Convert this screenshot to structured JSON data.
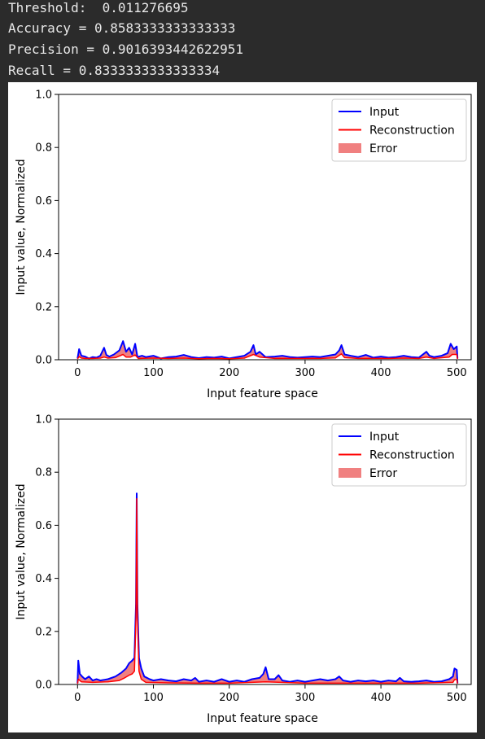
{
  "console": {
    "threshold_line": "Threshold:  0.011276695",
    "accuracy_line": "Accuracy = 0.8583333333333333",
    "precision_line": "Precision = 0.9016393442622951",
    "recall_line": "Recall = 0.8333333333333334"
  },
  "chart_data": [
    {
      "type": "line",
      "xlabel": "Input feature space",
      "ylabel": "Input value, Normalized",
      "xlim": [
        -25,
        519
      ],
      "ylim": [
        0,
        1.0
      ],
      "xticks": [
        0,
        100,
        200,
        300,
        400,
        500
      ],
      "yticks": [
        0.0,
        0.2,
        0.4,
        0.6,
        0.8,
        1.0
      ],
      "legend_position": "top-right",
      "legend": [
        "Input",
        "Reconstruction",
        "Error"
      ],
      "colors": {
        "input": "#0000ff",
        "reconstruction": "#ff0000",
        "error": "#f08080"
      },
      "input_points": [
        [
          0,
          0.005
        ],
        [
          2,
          0.04
        ],
        [
          5,
          0.015
        ],
        [
          10,
          0.012
        ],
        [
          15,
          0.005
        ],
        [
          20,
          0.01
        ],
        [
          25,
          0.008
        ],
        [
          30,
          0.015
        ],
        [
          35,
          0.045
        ],
        [
          38,
          0.018
        ],
        [
          42,
          0.012
        ],
        [
          48,
          0.02
        ],
        [
          55,
          0.035
        ],
        [
          60,
          0.07
        ],
        [
          64,
          0.03
        ],
        [
          68,
          0.045
        ],
        [
          72,
          0.02
        ],
        [
          76,
          0.06
        ],
        [
          79,
          0.01
        ],
        [
          85,
          0.015
        ],
        [
          90,
          0.01
        ],
        [
          100,
          0.015
        ],
        [
          110,
          0.005
        ],
        [
          120,
          0.01
        ],
        [
          130,
          0.012
        ],
        [
          140,
          0.018
        ],
        [
          150,
          0.01
        ],
        [
          160,
          0.006
        ],
        [
          170,
          0.01
        ],
        [
          180,
          0.008
        ],
        [
          190,
          0.012
        ],
        [
          200,
          0.005
        ],
        [
          210,
          0.01
        ],
        [
          220,
          0.015
        ],
        [
          228,
          0.03
        ],
        [
          232,
          0.055
        ],
        [
          235,
          0.02
        ],
        [
          240,
          0.03
        ],
        [
          248,
          0.01
        ],
        [
          260,
          0.012
        ],
        [
          270,
          0.015
        ],
        [
          280,
          0.01
        ],
        [
          290,
          0.008
        ],
        [
          300,
          0.01
        ],
        [
          310,
          0.012
        ],
        [
          320,
          0.01
        ],
        [
          330,
          0.015
        ],
        [
          340,
          0.02
        ],
        [
          345,
          0.035
        ],
        [
          348,
          0.055
        ],
        [
          352,
          0.02
        ],
        [
          360,
          0.015
        ],
        [
          370,
          0.01
        ],
        [
          380,
          0.018
        ],
        [
          390,
          0.008
        ],
        [
          400,
          0.012
        ],
        [
          410,
          0.008
        ],
        [
          420,
          0.01
        ],
        [
          430,
          0.015
        ],
        [
          440,
          0.01
        ],
        [
          450,
          0.008
        ],
        [
          460,
          0.03
        ],
        [
          464,
          0.015
        ],
        [
          470,
          0.01
        ],
        [
          480,
          0.015
        ],
        [
          488,
          0.025
        ],
        [
          492,
          0.06
        ],
        [
          496,
          0.04
        ],
        [
          500,
          0.05
        ],
        [
          501,
          0.005
        ]
      ],
      "reconstruction_points": [
        [
          0,
          0.003
        ],
        [
          2,
          0.012
        ],
        [
          5,
          0.006
        ],
        [
          10,
          0.005
        ],
        [
          20,
          0.005
        ],
        [
          30,
          0.006
        ],
        [
          35,
          0.01
        ],
        [
          40,
          0.006
        ],
        [
          50,
          0.008
        ],
        [
          60,
          0.02
        ],
        [
          64,
          0.01
        ],
        [
          70,
          0.01
        ],
        [
          76,
          0.018
        ],
        [
          80,
          0.005
        ],
        [
          100,
          0.006
        ],
        [
          120,
          0.005
        ],
        [
          140,
          0.006
        ],
        [
          160,
          0.004
        ],
        [
          180,
          0.005
        ],
        [
          200,
          0.004
        ],
        [
          220,
          0.006
        ],
        [
          232,
          0.02
        ],
        [
          240,
          0.01
        ],
        [
          260,
          0.005
        ],
        [
          280,
          0.005
        ],
        [
          300,
          0.005
        ],
        [
          320,
          0.005
        ],
        [
          340,
          0.007
        ],
        [
          348,
          0.022
        ],
        [
          352,
          0.008
        ],
        [
          370,
          0.005
        ],
        [
          390,
          0.005
        ],
        [
          410,
          0.005
        ],
        [
          430,
          0.006
        ],
        [
          450,
          0.005
        ],
        [
          460,
          0.01
        ],
        [
          470,
          0.005
        ],
        [
          490,
          0.01
        ],
        [
          494,
          0.02
        ],
        [
          500,
          0.02
        ],
        [
          501,
          0.003
        ]
      ]
    },
    {
      "type": "line",
      "xlabel": "Input feature space",
      "ylabel": "Input value, Normalized",
      "xlim": [
        -25,
        519
      ],
      "ylim": [
        0,
        1.0
      ],
      "xticks": [
        0,
        100,
        200,
        300,
        400,
        500
      ],
      "yticks": [
        0.0,
        0.2,
        0.4,
        0.6,
        0.8,
        1.0
      ],
      "legend_position": "top-right",
      "legend": [
        "Input",
        "Reconstruction",
        "Error"
      ],
      "colors": {
        "input": "#0000ff",
        "reconstruction": "#ff0000",
        "error": "#f08080"
      },
      "input_points": [
        [
          0,
          0.005
        ],
        [
          1,
          0.09
        ],
        [
          3,
          0.04
        ],
        [
          6,
          0.03
        ],
        [
          10,
          0.02
        ],
        [
          15,
          0.03
        ],
        [
          20,
          0.015
        ],
        [
          25,
          0.02
        ],
        [
          30,
          0.015
        ],
        [
          40,
          0.02
        ],
        [
          50,
          0.03
        ],
        [
          58,
          0.045
        ],
        [
          64,
          0.06
        ],
        [
          68,
          0.08
        ],
        [
          72,
          0.09
        ],
        [
          75,
          0.1
        ],
        [
          77,
          0.3
        ],
        [
          78,
          0.72
        ],
        [
          79,
          0.3
        ],
        [
          81,
          0.1
        ],
        [
          84,
          0.06
        ],
        [
          88,
          0.03
        ],
        [
          95,
          0.02
        ],
        [
          100,
          0.015
        ],
        [
          110,
          0.02
        ],
        [
          120,
          0.015
        ],
        [
          130,
          0.012
        ],
        [
          140,
          0.02
        ],
        [
          150,
          0.015
        ],
        [
          155,
          0.025
        ],
        [
          160,
          0.01
        ],
        [
          170,
          0.015
        ],
        [
          180,
          0.01
        ],
        [
          190,
          0.02
        ],
        [
          200,
          0.01
        ],
        [
          210,
          0.015
        ],
        [
          220,
          0.01
        ],
        [
          230,
          0.02
        ],
        [
          240,
          0.025
        ],
        [
          245,
          0.04
        ],
        [
          248,
          0.065
        ],
        [
          252,
          0.02
        ],
        [
          260,
          0.02
        ],
        [
          265,
          0.035
        ],
        [
          270,
          0.015
        ],
        [
          280,
          0.01
        ],
        [
          290,
          0.015
        ],
        [
          300,
          0.01
        ],
        [
          310,
          0.015
        ],
        [
          320,
          0.02
        ],
        [
          330,
          0.015
        ],
        [
          340,
          0.02
        ],
        [
          345,
          0.03
        ],
        [
          350,
          0.015
        ],
        [
          360,
          0.01
        ],
        [
          370,
          0.015
        ],
        [
          380,
          0.012
        ],
        [
          390,
          0.015
        ],
        [
          400,
          0.01
        ],
        [
          410,
          0.015
        ],
        [
          420,
          0.012
        ],
        [
          425,
          0.025
        ],
        [
          430,
          0.012
        ],
        [
          440,
          0.01
        ],
        [
          450,
          0.012
        ],
        [
          460,
          0.015
        ],
        [
          470,
          0.01
        ],
        [
          480,
          0.012
        ],
        [
          490,
          0.02
        ],
        [
          495,
          0.03
        ],
        [
          497,
          0.06
        ],
        [
          500,
          0.055
        ],
        [
          501,
          0.005
        ]
      ],
      "reconstruction_points": [
        [
          0,
          0.003
        ],
        [
          1,
          0.02
        ],
        [
          5,
          0.01
        ],
        [
          20,
          0.008
        ],
        [
          40,
          0.01
        ],
        [
          55,
          0.015
        ],
        [
          62,
          0.025
        ],
        [
          68,
          0.035
        ],
        [
          72,
          0.04
        ],
        [
          75,
          0.05
        ],
        [
          77,
          0.25
        ],
        [
          78,
          0.7
        ],
        [
          79,
          0.25
        ],
        [
          81,
          0.05
        ],
        [
          84,
          0.02
        ],
        [
          90,
          0.008
        ],
        [
          120,
          0.006
        ],
        [
          160,
          0.005
        ],
        [
          200,
          0.005
        ],
        [
          248,
          0.01
        ],
        [
          300,
          0.005
        ],
        [
          350,
          0.005
        ],
        [
          400,
          0.005
        ],
        [
          450,
          0.005
        ],
        [
          495,
          0.008
        ],
        [
          497,
          0.018
        ],
        [
          500,
          0.02
        ],
        [
          501,
          0.003
        ]
      ]
    }
  ]
}
